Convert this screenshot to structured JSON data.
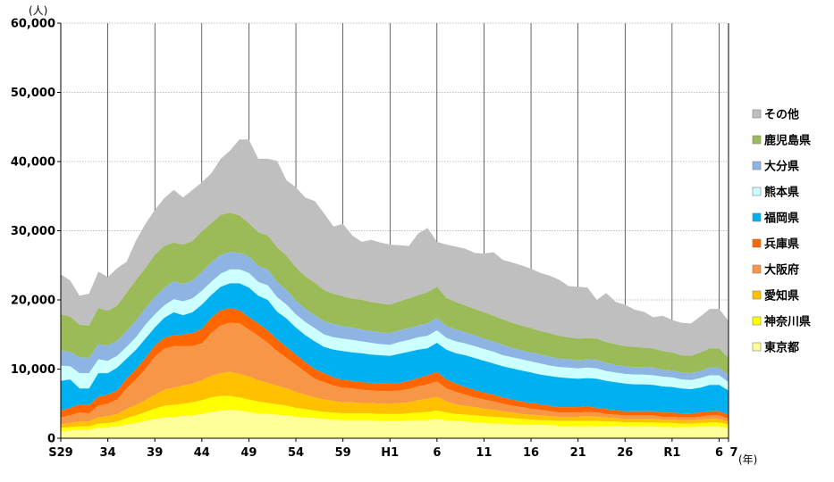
{
  "chart_data": {
    "type": "area",
    "stacked": true,
    "title": "",
    "xlabel": "(年)",
    "ylabel": "(人)",
    "ylim": [
      0,
      60000
    ],
    "grid": true,
    "legend_position": "right",
    "y_ticks": [
      "0",
      "10,000",
      "20,000",
      "30,000",
      "40,000",
      "50,000",
      "60,000"
    ],
    "x_tick_labels": [
      "S29",
      "34",
      "39",
      "44",
      "49",
      "54",
      "59",
      "H1",
      "6",
      "11",
      "16",
      "21",
      "26",
      "R1",
      "6",
      "7"
    ],
    "years": [
      "S29",
      "S30",
      "S31",
      "S32",
      "S33",
      "S34",
      "S35",
      "S36",
      "S37",
      "S38",
      "S39",
      "S40",
      "S41",
      "S42",
      "S43",
      "S44",
      "S45",
      "S46",
      "S47",
      "S48",
      "S49",
      "S50",
      "S51",
      "S52",
      "S53",
      "S54",
      "S55",
      "S56",
      "S57",
      "S58",
      "S59",
      "S60",
      "S61",
      "S62",
      "S63",
      "H1",
      "H2",
      "H3",
      "H4",
      "H5",
      "H6",
      "H7",
      "H8",
      "H9",
      "H10",
      "H11",
      "H12",
      "H13",
      "H14",
      "H15",
      "H16",
      "H17",
      "H18",
      "H19",
      "H20",
      "H21",
      "H22",
      "H23",
      "H24",
      "H25",
      "H26",
      "H27",
      "H28",
      "H29",
      "H30",
      "R1",
      "R2",
      "R3",
      "R4",
      "R5",
      "R6",
      "R7"
    ],
    "cumulative": [
      {
        "name": "東京都",
        "color": "#ffff99",
        "values": [
          1000,
          1100,
          1200,
          1200,
          1500,
          1600,
          1700,
          2000,
          2200,
          2500,
          2800,
          3000,
          3100,
          3200,
          3300,
          3500,
          3800,
          4000,
          4100,
          4000,
          3800,
          3600,
          3500,
          3400,
          3300,
          3100,
          3000,
          2900,
          2800,
          2700,
          2600,
          2600,
          2600,
          2600,
          2500,
          2500,
          2500,
          2600,
          2600,
          2600,
          2800,
          2600,
          2500,
          2400,
          2300,
          2200,
          2100,
          2100,
          2000,
          2000,
          1900,
          1900,
          1900,
          1800,
          1800,
          1800,
          1800,
          1800,
          1800,
          1800,
          1700,
          1700,
          1700,
          1700,
          1600,
          1600,
          1600,
          1600,
          1700,
          1700,
          1700,
          1500
        ]
      },
      {
        "name": "神奈川県",
        "color": "#ffff00",
        "values": [
          1500,
          1600,
          1700,
          1700,
          2100,
          2200,
          2400,
          2900,
          3300,
          3800,
          4300,
          4700,
          4800,
          5000,
          5200,
          5500,
          5900,
          6100,
          6100,
          5900,
          5600,
          5300,
          5100,
          4900,
          4700,
          4400,
          4200,
          4000,
          3800,
          3700,
          3600,
          3600,
          3600,
          3600,
          3500,
          3500,
          3500,
          3600,
          3700,
          3800,
          4000,
          3700,
          3500,
          3400,
          3300,
          3200,
          3100,
          3000,
          2900,
          2800,
          2700,
          2600,
          2600,
          2500,
          2500,
          2500,
          2500,
          2500,
          2400,
          2400,
          2300,
          2300,
          2300,
          2300,
          2200,
          2200,
          2100,
          2100,
          2200,
          2300,
          2300,
          2000
        ]
      },
      {
        "name": "愛知県",
        "color": "#ffc000",
        "values": [
          2000,
          2200,
          2400,
          2400,
          3000,
          3200,
          3500,
          4200,
          4800,
          5500,
          6300,
          7000,
          7300,
          7600,
          7900,
          8400,
          9000,
          9400,
          9600,
          9300,
          8900,
          8400,
          8000,
          7600,
          7200,
          6700,
          6300,
          5900,
          5600,
          5400,
          5200,
          5200,
          5100,
          5100,
          5000,
          5000,
          5100,
          5200,
          5500,
          5700,
          6000,
          5300,
          4900,
          4700,
          4500,
          4300,
          4100,
          3900,
          3700,
          3500,
          3400,
          3300,
          3200,
          3100,
          3100,
          3100,
          3200,
          3100,
          3000,
          2900,
          2800,
          2800,
          2800,
          2800,
          2700,
          2700,
          2600,
          2600,
          2700,
          2800,
          2800,
          2400
        ]
      },
      {
        "name": "大阪府",
        "color": "#f79646",
        "values": [
          3000,
          3300,
          3700,
          3600,
          4700,
          5000,
          5600,
          7200,
          8500,
          10000,
          11800,
          12900,
          13300,
          13300,
          13300,
          13700,
          15200,
          16300,
          16700,
          16600,
          15700,
          14800,
          13800,
          12600,
          11600,
          10600,
          9600,
          8600,
          8100,
          7600,
          7300,
          7200,
          7000,
          6900,
          6800,
          6800,
          6900,
          7100,
          7500,
          7800,
          8200,
          7200,
          6700,
          6300,
          5900,
          5600,
          5300,
          5000,
          4700,
          4500,
          4300,
          4100,
          3900,
          3700,
          3700,
          3700,
          3800,
          3700,
          3500,
          3400,
          3300,
          3300,
          3300,
          3300,
          3100,
          3100,
          3000,
          3000,
          3100,
          3300,
          3300,
          2800
        ]
      },
      {
        "name": "兵庫県",
        "color": "#ff6600",
        "values": [
          4000,
          4400,
          4900,
          4800,
          6000,
          6300,
          6900,
          8600,
          10000,
          11600,
          13400,
          14500,
          14900,
          15000,
          15200,
          15800,
          17400,
          18500,
          18800,
          18500,
          17500,
          16600,
          15600,
          14300,
          13200,
          12100,
          11000,
          10000,
          9400,
          8800,
          8400,
          8300,
          8100,
          8000,
          7900,
          7900,
          8000,
          8300,
          8700,
          9100,
          9600,
          8500,
          7900,
          7400,
          7000,
          6600,
          6300,
          5900,
          5600,
          5300,
          5100,
          4900,
          4700,
          4500,
          4500,
          4500,
          4600,
          4400,
          4200,
          4000,
          3900,
          3900,
          3900,
          3900,
          3700,
          3700,
          3600,
          3600,
          3700,
          3900,
          3900,
          3400
        ]
      },
      {
        "name": "福岡県",
        "color": "#00b0f0",
        "values": [
          8300,
          8500,
          7200,
          7200,
          9400,
          9400,
          10200,
          11500,
          12800,
          14400,
          16000,
          17400,
          18200,
          17800,
          18200,
          19300,
          20700,
          21900,
          22400,
          22400,
          21800,
          20600,
          20000,
          18300,
          17300,
          16000,
          14900,
          14000,
          13200,
          12800,
          12600,
          12400,
          12300,
          12100,
          12000,
          11900,
          12200,
          12500,
          12800,
          13000,
          13800,
          12800,
          12300,
          12000,
          11600,
          11200,
          10800,
          10400,
          10100,
          9800,
          9500,
          9200,
          9000,
          8800,
          8700,
          8600,
          8700,
          8600,
          8300,
          8100,
          7900,
          7800,
          7800,
          7700,
          7500,
          7400,
          7200,
          7100,
          7300,
          7700,
          7700,
          6900
        ]
      },
      {
        "name": "熊本県",
        "color": "#ccffff",
        "values": [
          10500,
          10400,
          9400,
          9400,
          11400,
          11200,
          11900,
          13200,
          14600,
          16400,
          17900,
          19200,
          20100,
          19800,
          20200,
          21300,
          22600,
          23800,
          24400,
          24400,
          23900,
          22600,
          22100,
          20400,
          19300,
          17900,
          16800,
          15900,
          15000,
          14600,
          14400,
          14200,
          14000,
          13800,
          13600,
          13500,
          13900,
          14200,
          14600,
          14800,
          15600,
          14500,
          14000,
          13700,
          13300,
          12900,
          12500,
          12000,
          11700,
          11400,
          11100,
          10800,
          10500,
          10300,
          10200,
          10100,
          10200,
          10100,
          9700,
          9500,
          9300,
          9200,
          9200,
          9100,
          8900,
          8800,
          8500,
          8400,
          8700,
          9100,
          9100,
          8100
        ]
      },
      {
        "name": "大分県",
        "color": "#8db4e2",
        "values": [
          12700,
          12500,
          11700,
          11600,
          13600,
          13400,
          14100,
          15500,
          17000,
          18800,
          20400,
          21700,
          22700,
          22300,
          22800,
          24000,
          25400,
          26500,
          26900,
          26800,
          26300,
          24900,
          24400,
          22600,
          21400,
          19900,
          18700,
          17800,
          16900,
          16500,
          16200,
          16000,
          15700,
          15500,
          15300,
          15200,
          15600,
          15900,
          16300,
          16600,
          17400,
          16200,
          15700,
          15300,
          14900,
          14400,
          14000,
          13500,
          13100,
          12700,
          12400,
          12100,
          11800,
          11500,
          11400,
          11300,
          11400,
          11300,
          10900,
          10600,
          10400,
          10300,
          10300,
          10200,
          9900,
          9800,
          9500,
          9400,
          9700,
          10200,
          10200,
          9100
        ]
      },
      {
        "name": "鹿児島県",
        "color": "#9bbb59",
        "values": [
          17900,
          17600,
          16400,
          16300,
          18800,
          18400,
          19200,
          21000,
          22900,
          24600,
          26500,
          27800,
          28300,
          28000,
          28500,
          29900,
          31100,
          32300,
          32600,
          32200,
          31100,
          29800,
          29300,
          27600,
          26400,
          24700,
          23400,
          22500,
          21400,
          20900,
          20500,
          20200,
          20000,
          19700,
          19500,
          19300,
          19800,
          20200,
          20700,
          21100,
          21900,
          20300,
          19700,
          19200,
          18700,
          18200,
          17700,
          17200,
          16700,
          16300,
          15900,
          15500,
          15200,
          14800,
          14600,
          14400,
          14500,
          14400,
          13900,
          13600,
          13300,
          13200,
          13100,
          13000,
          12600,
          12400,
          12000,
          11900,
          12400,
          13000,
          13000,
          11600
        ]
      },
      {
        "name": "その他",
        "color": "#bfbfbf",
        "values": [
          23700,
          22800,
          20600,
          20900,
          24100,
          23300,
          24600,
          25500,
          28600,
          31000,
          33000,
          34700,
          35900,
          34800,
          35900,
          37000,
          38300,
          40400,
          41600,
          43200,
          43200,
          40400,
          40400,
          40100,
          37300,
          36300,
          34800,
          34300,
          32500,
          30600,
          31000,
          29300,
          28400,
          28700,
          28300,
          28000,
          27900,
          27800,
          29600,
          30400,
          28400,
          28000,
          27700,
          27400,
          26800,
          26700,
          26900,
          25800,
          25400,
          25000,
          24500,
          23900,
          23500,
          22900,
          22000,
          21900,
          21800,
          20000,
          21000,
          19700,
          19300,
          18600,
          18300,
          17500,
          17700,
          17100,
          16700,
          16600,
          17600,
          18700,
          18700,
          17000
        ]
      }
    ],
    "legend_order": [
      "その他",
      "鹿児島県",
      "大分県",
      "熊本県",
      "福岡県",
      "兵庫県",
      "大阪府",
      "愛知県",
      "神奈川県",
      "東京都"
    ]
  }
}
